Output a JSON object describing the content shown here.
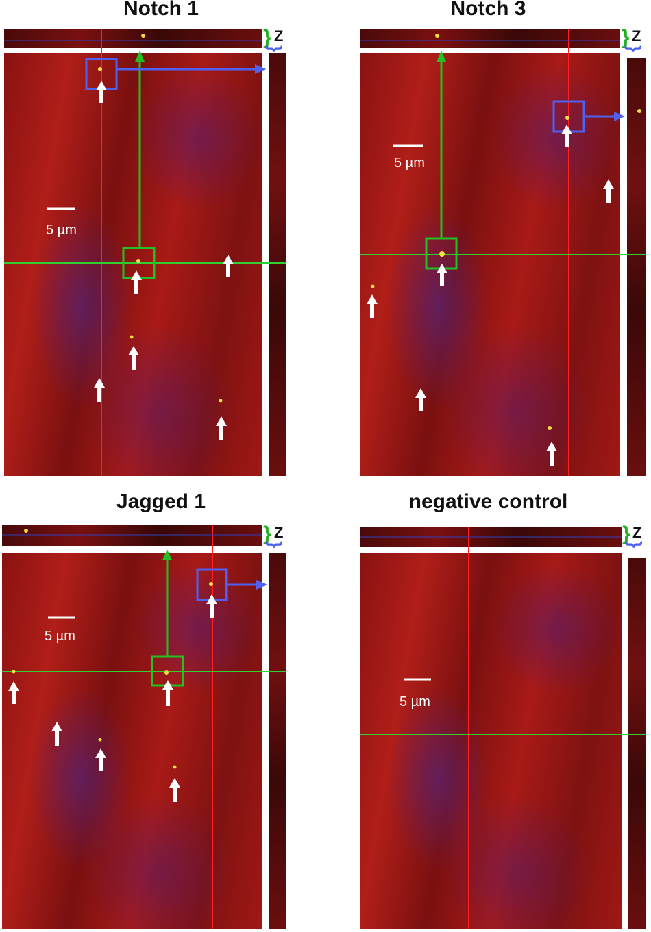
{
  "panels": [
    {
      "title": "Notch 1",
      "axis_label": "Z",
      "scale_bar": "5 µm"
    },
    {
      "title": "Notch 3",
      "axis_label": "Z",
      "scale_bar": "5 µm"
    },
    {
      "title": "Jagged 1",
      "axis_label": "Z",
      "scale_bar": "5 µm"
    },
    {
      "title": "negative control",
      "axis_label": "Z",
      "scale_bar": "5 µm"
    }
  ],
  "colors": {
    "crosshair_vertical": "#ff2020",
    "crosshair_horizontal": "#30d030",
    "green_box": "#22c022",
    "blue_box": "#5060f0",
    "arrow": "#ffffff"
  }
}
